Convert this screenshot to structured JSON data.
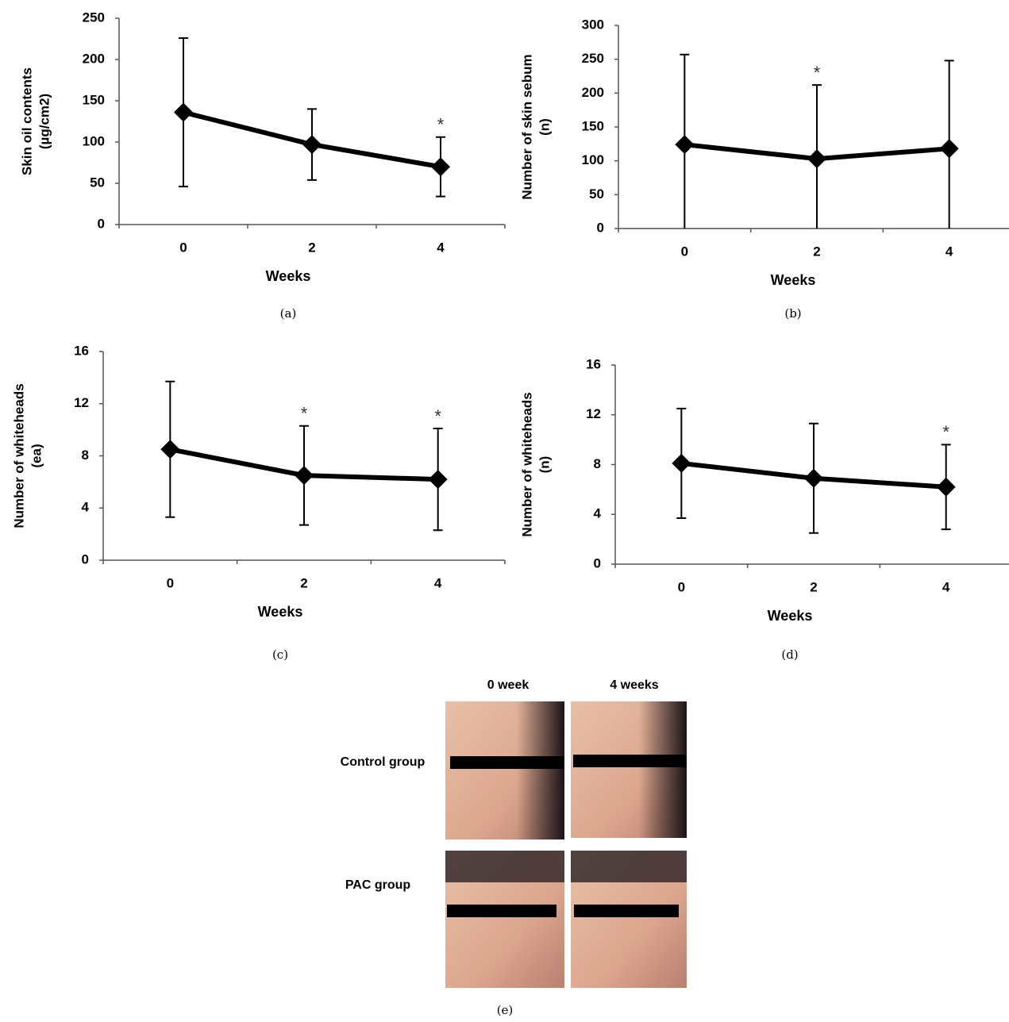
{
  "chart_data": [
    {
      "type": "line",
      "caption": "(a)",
      "ylabel": [
        "Skin oil contents",
        "(µg/cm2)"
      ],
      "xlabel": "Weeks",
      "categories": [
        "0",
        "2",
        "4"
      ],
      "values": [
        136,
        97,
        70
      ],
      "errors": [
        90,
        43,
        36
      ],
      "markers": [
        null,
        null,
        "*"
      ],
      "color": "#000000",
      "ylim": [
        0,
        250
      ],
      "yticks": [
        0,
        50,
        100,
        150,
        200,
        250
      ]
    },
    {
      "type": "line",
      "caption": "(b)",
      "ylabel": [
        "Number of skin sebum",
        "(n)"
      ],
      "xlabel": "Weeks",
      "categories": [
        "0",
        "2",
        "4"
      ],
      "values": [
        124,
        103,
        118
      ],
      "errors": [
        133,
        109,
        130
      ],
      "markers": [
        null,
        "*",
        null
      ],
      "color": "#000000",
      "ylim": [
        0,
        300
      ],
      "yticks": [
        0,
        50,
        100,
        150,
        200,
        250,
        300
      ]
    },
    {
      "type": "line",
      "caption": "(c)",
      "ylabel": [
        "Number of whiteheads",
        "(ea)"
      ],
      "xlabel": "Weeks",
      "categories": [
        "0",
        "2",
        "4"
      ],
      "values": [
        8.5,
        6.5,
        6.2
      ],
      "errors": [
        5.2,
        3.8,
        3.9
      ],
      "markers": [
        null,
        "*",
        "*"
      ],
      "color": "#000000",
      "ylim": [
        0,
        16
      ],
      "yticks": [
        0,
        4,
        8,
        12,
        16
      ]
    },
    {
      "type": "line",
      "caption": "(d)",
      "ylabel": [
        "Number of whiteheads",
        "(n)"
      ],
      "xlabel": "Weeks",
      "categories": [
        "0",
        "2",
        "4"
      ],
      "values": [
        8.1,
        6.9,
        6.2
      ],
      "errors": [
        4.4,
        4.4,
        3.4
      ],
      "markers": [
        null,
        null,
        "*"
      ],
      "color": "#000000",
      "ylim": [
        0,
        16
      ],
      "yticks": [
        0,
        4,
        8,
        12,
        16
      ]
    }
  ],
  "panel_e": {
    "columns": [
      "0 week",
      "4 weeks"
    ],
    "rows": [
      "Control group",
      "PAC group"
    ],
    "caption": "(e)"
  }
}
